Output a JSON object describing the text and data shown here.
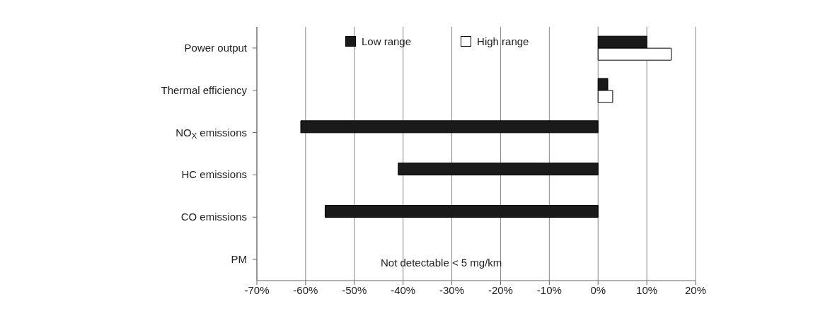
{
  "chart_data": {
    "type": "bar",
    "orientation": "horizontal",
    "categories": [
      "Power output",
      "Thermal efficiency",
      "NO$_{X}$ emissions",
      "HC emissions",
      "CO emissions",
      "PM"
    ],
    "series": [
      {
        "name": "Low range",
        "color": "#1a1a1a",
        "values": [
          10,
          2,
          -61,
          -41,
          -56,
          null
        ]
      },
      {
        "name": "High range",
        "color": "#ffffff",
        "values": [
          15,
          3,
          0,
          0,
          0,
          0
        ]
      }
    ],
    "xlim": [
      -70,
      20
    ],
    "xticks": [
      {
        "value": -70,
        "label": "-70%"
      },
      {
        "value": -60,
        "label": "-60%"
      },
      {
        "value": -50,
        "label": "-50%"
      },
      {
        "value": -40,
        "label": "-40%"
      },
      {
        "value": -30,
        "label": "-30%"
      },
      {
        "value": -20,
        "label": "-20%"
      },
      {
        "value": -10,
        "label": "-10%"
      },
      {
        "value": 0,
        "label": "0%"
      },
      {
        "value": 10,
        "label": "10%"
      },
      {
        "value": 20,
        "label": "20%"
      }
    ],
    "grid": "x",
    "legend": "top",
    "annotations": [
      "Not detectable < 5 mg/km"
    ]
  }
}
